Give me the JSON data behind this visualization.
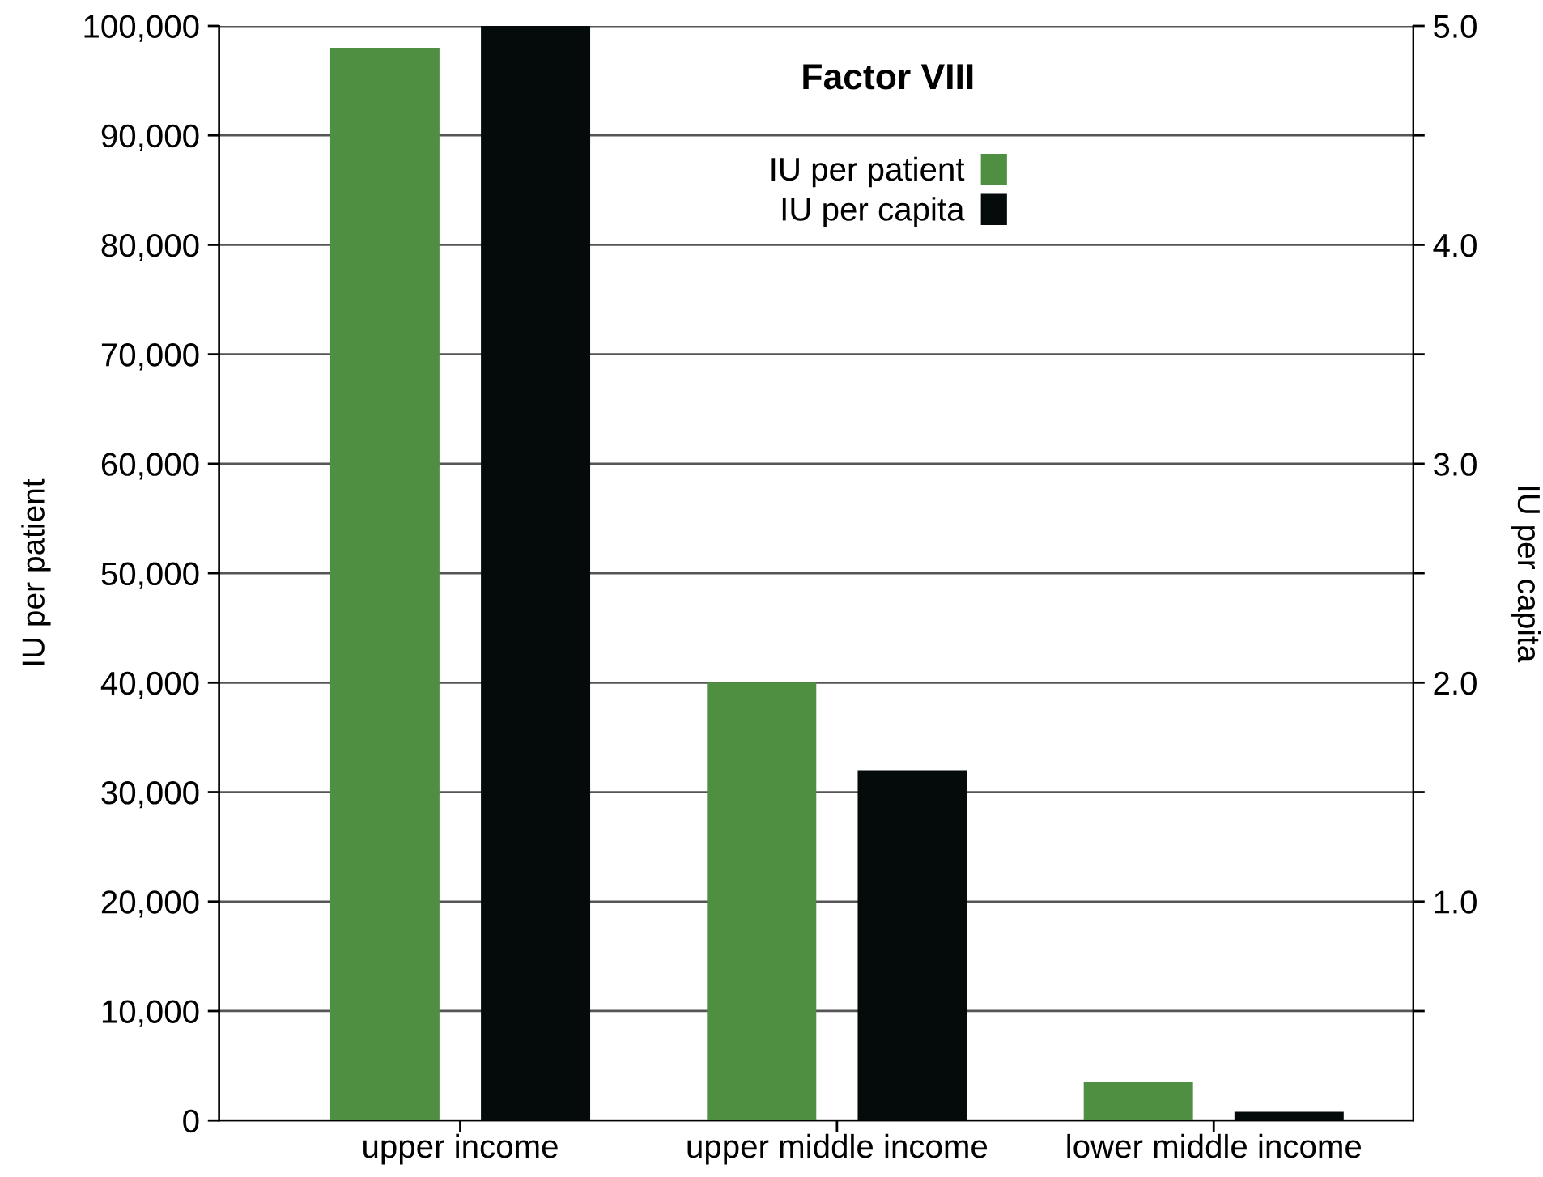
{
  "chart_data": {
    "type": "bar",
    "title": "Factor VIII",
    "categories": [
      "upper income",
      "upper middle income",
      "lower middle income"
    ],
    "series": [
      {
        "name": "IU per patient",
        "color": "#4f8f42",
        "values": [
          98000,
          40000,
          3500
        ]
      },
      {
        "name": "IU per capita",
        "color": "#050a0a",
        "values": [
          5.0,
          1.6,
          0.04
        ],
        "axis": "y2"
      }
    ],
    "ylabel": "IU per patient",
    "y2label": "IU per capita",
    "ylim": [
      0,
      100000
    ],
    "yticks": [
      {
        "value": 0,
        "label": "0"
      },
      {
        "value": 10000,
        "label": "10,000"
      },
      {
        "value": 20000,
        "label": "20,000"
      },
      {
        "value": 30000,
        "label": "30,000"
      },
      {
        "value": 40000,
        "label": "40,000"
      },
      {
        "value": 50000,
        "label": "50,000"
      },
      {
        "value": 60000,
        "label": "60,000"
      },
      {
        "value": 70000,
        "label": "70,000"
      },
      {
        "value": 80000,
        "label": "80,000"
      },
      {
        "value": 90000,
        "label": "90,000"
      },
      {
        "value": 100000,
        "label": "100,000"
      }
    ],
    "y2lim": [
      0,
      5.0
    ],
    "y2ticks": [
      {
        "value": 0.5,
        "label": null
      },
      {
        "value": 1.0,
        "label": "1.0"
      },
      {
        "value": 1.5,
        "label": null
      },
      {
        "value": 2.0,
        "label": "2.0"
      },
      {
        "value": 2.5,
        "label": null
      },
      {
        "value": 3.0,
        "label": "3.0"
      },
      {
        "value": 3.5,
        "label": null
      },
      {
        "value": 4.0,
        "label": "4.0"
      },
      {
        "value": 4.5,
        "label": null
      },
      {
        "value": 5.0,
        "label": "5.0"
      }
    ],
    "grid": "y",
    "legend": "top"
  }
}
